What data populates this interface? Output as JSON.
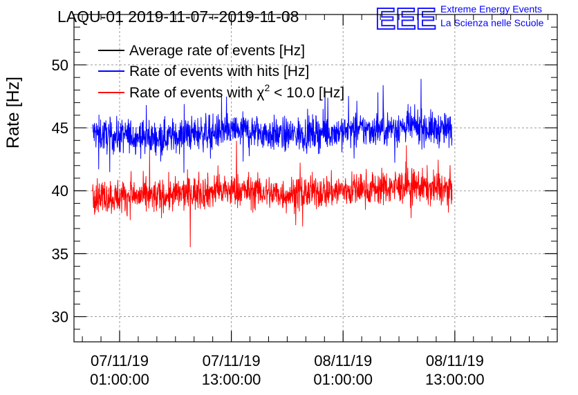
{
  "chart_data": {
    "type": "line",
    "title": "LAQU-01 2019-11-07--2019-11-08",
    "ylabel": "Rate [Hz]",
    "xlabel": "",
    "ylim": [
      28,
      54
    ],
    "xlim_hours": [
      -4.9,
      47.0
    ],
    "grid": true,
    "legend_position": "top-left",
    "yticks": [
      30,
      35,
      40,
      45,
      50
    ],
    "xticks": [
      {
        "hour": 0,
        "date": "07/11/19",
        "time": "01:00:00"
      },
      {
        "hour": 12,
        "date": "07/11/19",
        "time": "13:00:00"
      },
      {
        "hour": 24,
        "date": "08/11/19",
        "time": "01:00:00"
      },
      {
        "hour": 36,
        "date": "08/11/19",
        "time": "13:00:00"
      }
    ],
    "series": [
      {
        "name": "Average rate of events [Hz]",
        "color": "#000000",
        "values": []
      },
      {
        "name": "Rate of events with hits [Hz]",
        "color": "#0000ff",
        "x_start_hour": -2.9,
        "x_end_hour": 35.7,
        "mean": 44.6,
        "noise_amp": 1.2,
        "values": [
          44.6,
          44.3,
          44.4,
          44.2,
          44.3,
          44.5,
          44.6,
          44.7,
          44.8,
          44.6,
          44.4,
          44.5,
          44.6,
          44.7,
          44.8,
          44.9,
          45.0,
          45.1,
          44.9,
          44.8
        ]
      },
      {
        "name": "Rate of events with χ² < 10.0 [Hz]",
        "color": "#ff0000",
        "x_start_hour": -2.9,
        "x_end_hour": 35.7,
        "mean": 39.8,
        "noise_amp": 1.2,
        "values": [
          39.7,
          39.5,
          39.6,
          39.5,
          39.6,
          39.8,
          39.9,
          40.0,
          40.0,
          39.9,
          39.7,
          39.8,
          39.9,
          40.0,
          40.1,
          40.2,
          40.3,
          40.4,
          40.2,
          40.1
        ]
      }
    ]
  },
  "legend": {
    "avg": "Average rate of events [Hz]",
    "hits": "Rate of events with hits [Hz]",
    "chi_prefix": "Rate of events with χ",
    "chi_sup": "2",
    "chi_suffix": " < 10.0 [Hz]"
  },
  "logo": {
    "mark": "EEE",
    "line1": "Extreme Energy Events",
    "line2": "La Scienza nelle Scuole"
  }
}
